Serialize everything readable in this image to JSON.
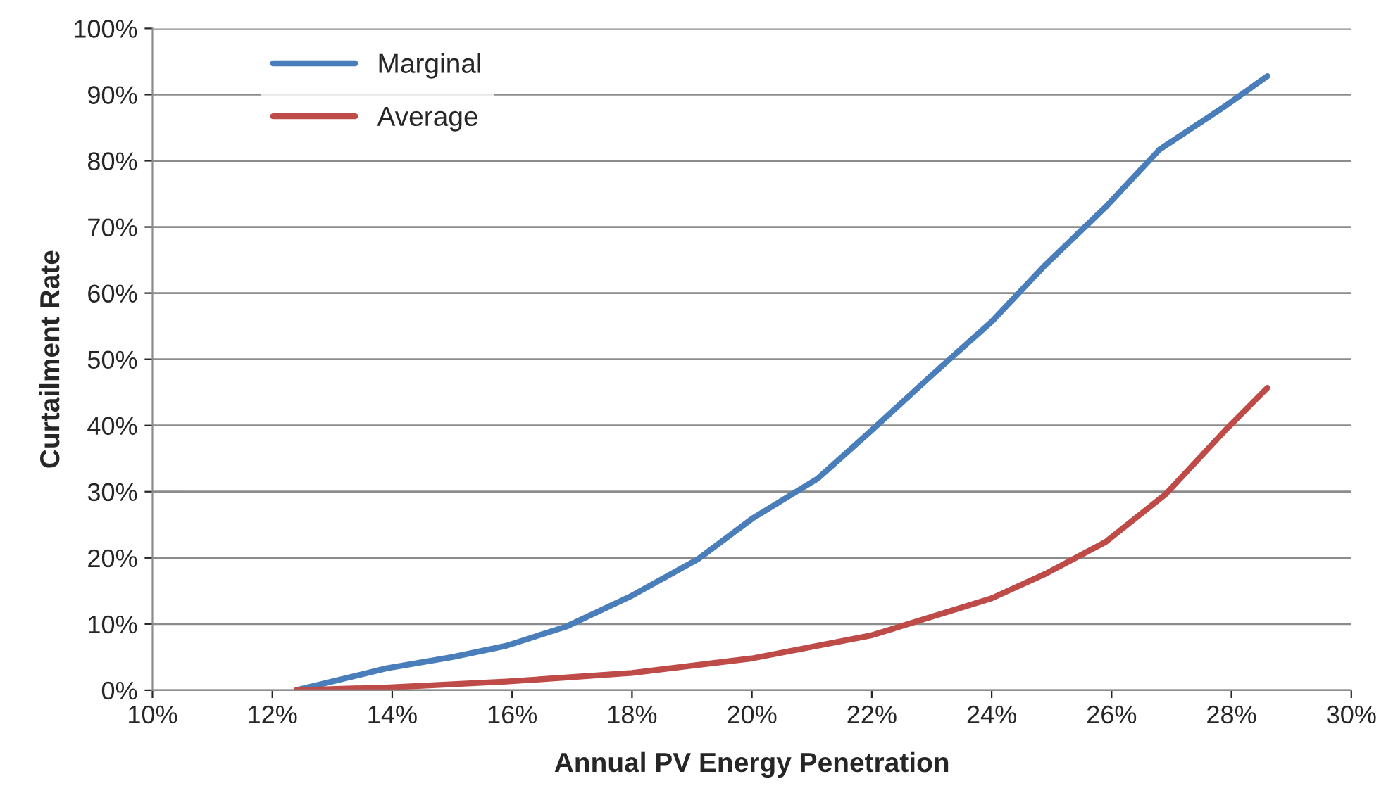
{
  "chart_data": {
    "type": "line",
    "xlabel": "Annual PV Energy Penetration",
    "ylabel": "Curtailment Rate",
    "series": [
      {
        "name": "Marginal",
        "color": "#4a7ebb",
        "x": [
          12.4,
          13.9,
          15.0,
          15.9,
          16.9,
          18.0,
          19.1,
          20.0,
          21.1,
          22.0,
          23.0,
          24.0,
          24.9,
          25.9,
          26.8,
          27.9,
          28.6
        ],
        "values": [
          0,
          3.3,
          5,
          6.7,
          9.6,
          14.3,
          19.8,
          25.9,
          32,
          39.3,
          47.6,
          55.7,
          64.3,
          73,
          81.7,
          88.3,
          92.8
        ]
      },
      {
        "name": "Average",
        "color": "#be4b48",
        "x": [
          12.4,
          13.9,
          15.9,
          18.0,
          20.0,
          22.0,
          24.0,
          24.9,
          25.9,
          26.9,
          27.9,
          28.6
        ],
        "values": [
          0,
          0.4,
          1.3,
          2.6,
          4.8,
          8.3,
          13.9,
          17.6,
          22.4,
          29.6,
          39.3,
          45.7
        ]
      }
    ],
    "xlim": [
      10,
      30
    ],
    "xticks": [
      {
        "value": 10,
        "label": "10%"
      },
      {
        "value": 12,
        "label": "12%"
      },
      {
        "value": 14,
        "label": "14%"
      },
      {
        "value": 16,
        "label": "16%"
      },
      {
        "value": 18,
        "label": "18%"
      },
      {
        "value": 20,
        "label": "20%"
      },
      {
        "value": 22,
        "label": "22%"
      },
      {
        "value": 24,
        "label": "24%"
      },
      {
        "value": 26,
        "label": "26%"
      },
      {
        "value": 28,
        "label": "28%"
      },
      {
        "value": 30,
        "label": "30%"
      }
    ],
    "ylim": [
      0,
      100
    ],
    "yticks": [
      {
        "value": 0,
        "label": "0%"
      },
      {
        "value": 10,
        "label": "10%"
      },
      {
        "value": 20,
        "label": "20%"
      },
      {
        "value": 30,
        "label": "30%"
      },
      {
        "value": 40,
        "label": "40%"
      },
      {
        "value": 50,
        "label": "50%"
      },
      {
        "value": 60,
        "label": "60%"
      },
      {
        "value": 70,
        "label": "70%"
      },
      {
        "value": 80,
        "label": "80%"
      },
      {
        "value": 90,
        "label": "90%"
      },
      {
        "value": 100,
        "label": "100%"
      }
    ],
    "grid": "y",
    "legend": "top left",
    "line_style": "solid",
    "marker": "none"
  }
}
